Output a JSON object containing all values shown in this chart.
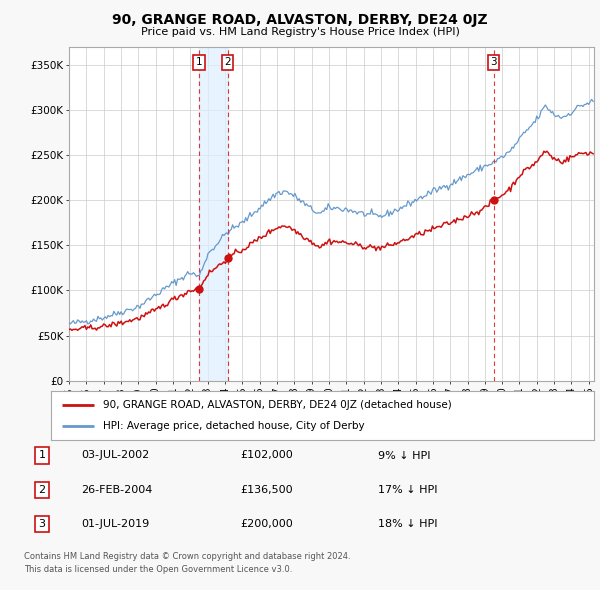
{
  "title": "90, GRANGE ROAD, ALVASTON, DERBY, DE24 0JZ",
  "subtitle": "Price paid vs. HM Land Registry's House Price Index (HPI)",
  "legend_label_red": "90, GRANGE ROAD, ALVASTON, DERBY, DE24 0JZ (detached house)",
  "legend_label_blue": "HPI: Average price, detached house, City of Derby",
  "footer_line1": "Contains HM Land Registry data © Crown copyright and database right 2024.",
  "footer_line2": "This data is licensed under the Open Government Licence v3.0.",
  "transactions": [
    {
      "num": 1,
      "date": "03-JUL-2002",
      "price": "£102,000",
      "pct": "9% ↓ HPI",
      "year": 2002.5,
      "price_val": 102000
    },
    {
      "num": 2,
      "date": "26-FEB-2004",
      "price": "£136,500",
      "pct": "17% ↓ HPI",
      "year": 2004.15,
      "price_val": 136500
    },
    {
      "num": 3,
      "date": "01-JUL-2019",
      "price": "£200,000",
      "pct": "18% ↓ HPI",
      "year": 2019.5,
      "price_val": 200000
    }
  ],
  "xlim": [
    1995,
    2025.3
  ],
  "ylim": [
    0,
    370000
  ],
  "yticks": [
    0,
    50000,
    100000,
    150000,
    200000,
    250000,
    300000,
    350000
  ],
  "ytick_labels": [
    "£0",
    "£50K",
    "£100K",
    "£150K",
    "£200K",
    "£250K",
    "£300K",
    "£350K"
  ],
  "red_color": "#cc1111",
  "blue_color": "#6699cc",
  "shade_color": "#ddeeff",
  "dashed_color": "#dd2222",
  "background_color": "#f8f8f8",
  "plot_bg_color": "#ffffff",
  "grid_color": "#cccccc"
}
